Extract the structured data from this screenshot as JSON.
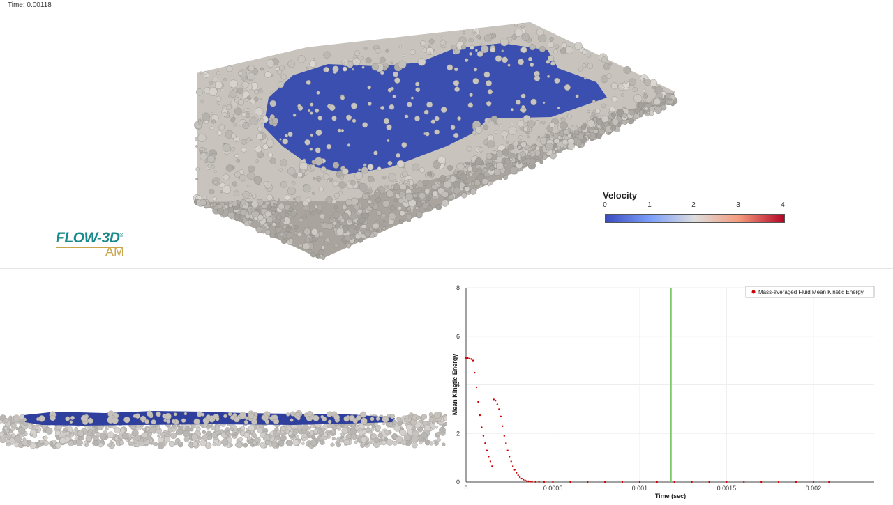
{
  "time_label": "Time: 0.00118",
  "logo": {
    "main": "FLOW-3D",
    "reg": "®",
    "sub": "AM"
  },
  "legend": {
    "title": "Velocity",
    "ticks": [
      "0",
      "1",
      "2",
      "3",
      "4"
    ]
  },
  "colors": {
    "fluid": "#3a4fb0",
    "powder": "#c6c2bb",
    "series": "#cc0000",
    "time_marker": "#7cc96a",
    "logo_teal": "#1a8a8c",
    "logo_gold": "#c9a64b"
  },
  "chart_data": {
    "type": "scatter",
    "xlabel": "Time (sec)",
    "ylabel": "Mean Kinetic Energy",
    "xlim": [
      0,
      0.00235
    ],
    "ylim": [
      0,
      8
    ],
    "x_ticks": [
      "0",
      "0.0005",
      "0.001",
      "0.0015",
      "0.002"
    ],
    "y_ticks": [
      "0",
      "2",
      "4",
      "6",
      "8"
    ],
    "grid": true,
    "legend_position": "top-right",
    "current_time": 0.00118,
    "series": [
      {
        "name": "Mass-averaged Fluid Mean Kinetic Energy",
        "points": [
          [
            0.0,
            5.1
          ],
          [
            1e-05,
            5.1
          ],
          [
            2e-05,
            5.08
          ],
          [
            3e-05,
            5.06
          ],
          [
            4e-05,
            5.0
          ],
          [
            5e-05,
            4.5
          ],
          [
            6e-05,
            3.9
          ],
          [
            7e-05,
            3.3
          ],
          [
            8e-05,
            2.75
          ],
          [
            9e-05,
            2.25
          ],
          [
            0.0001,
            1.9
          ],
          [
            0.00011,
            1.6
          ],
          [
            0.00012,
            1.3
          ],
          [
            0.00013,
            1.05
          ],
          [
            0.00014,
            0.85
          ],
          [
            0.00015,
            0.65
          ],
          [
            0.00016,
            3.4
          ],
          [
            0.00017,
            3.35
          ],
          [
            0.00018,
            3.2
          ],
          [
            0.00019,
            3.0
          ],
          [
            0.0002,
            2.7
          ],
          [
            0.00021,
            2.3
          ],
          [
            0.00022,
            1.9
          ],
          [
            0.00023,
            1.6
          ],
          [
            0.00024,
            1.3
          ],
          [
            0.00025,
            1.05
          ],
          [
            0.00026,
            0.85
          ],
          [
            0.00027,
            0.65
          ],
          [
            0.00028,
            0.5
          ],
          [
            0.00029,
            0.38
          ],
          [
            0.0003,
            0.28
          ],
          [
            0.00031,
            0.2
          ],
          [
            0.00032,
            0.14
          ],
          [
            0.00033,
            0.1
          ],
          [
            0.00034,
            0.07
          ],
          [
            0.00035,
            0.04
          ],
          [
            0.00036,
            0.03
          ],
          [
            0.00037,
            0.02
          ],
          [
            0.00038,
            0.01
          ],
          [
            0.0004,
            0.01
          ],
          [
            0.00042,
            0.005
          ],
          [
            0.00045,
            0.0
          ],
          [
            0.0005,
            0.0
          ],
          [
            0.0006,
            0.0
          ],
          [
            0.0007,
            0.0
          ],
          [
            0.0008,
            0.0
          ],
          [
            0.0009,
            0.0
          ],
          [
            0.001,
            0.0
          ],
          [
            0.0011,
            0.0
          ],
          [
            0.0012,
            0.0
          ],
          [
            0.0013,
            0.0
          ],
          [
            0.0014,
            0.0
          ],
          [
            0.0015,
            0.0
          ],
          [
            0.0016,
            0.0
          ],
          [
            0.0017,
            0.0
          ],
          [
            0.0018,
            0.0
          ],
          [
            0.0019,
            0.0
          ],
          [
            0.002,
            0.0
          ],
          [
            0.00209,
            0.0
          ]
        ]
      }
    ]
  }
}
